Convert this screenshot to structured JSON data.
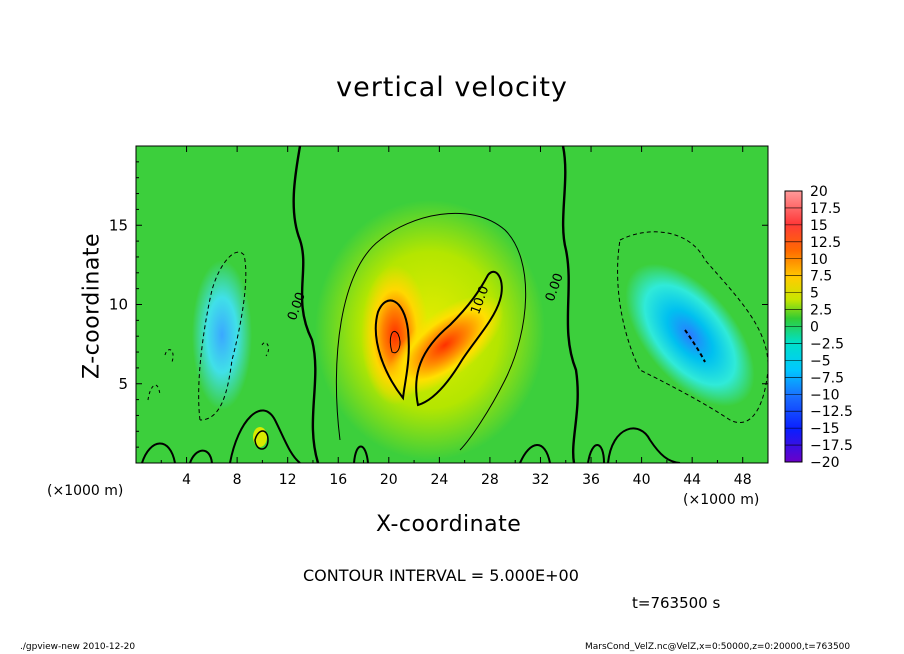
{
  "chart_data": {
    "type": "contour",
    "title": "vertical velocity",
    "xlabel": "X-coordinate",
    "ylabel": "Z-coordinate",
    "x_unit_note": "(×1000 m)",
    "xlim": [
      0,
      50
    ],
    "ylim": [
      0,
      20
    ],
    "x_ticks": [
      "4",
      "8",
      "12",
      "16",
      "20",
      "24",
      "28",
      "32",
      "36",
      "40",
      "44",
      "48"
    ],
    "y_ticks": [
      "5",
      "10",
      "15"
    ],
    "colorbar_ticks": [
      "20",
      "17.5",
      "15",
      "12.5",
      "10",
      "7.5",
      "5",
      "2.5",
      "0",
      "-2.5",
      "-5",
      "-7.5",
      "-10",
      "-12.5",
      "-15",
      "-17.5",
      "-20"
    ],
    "contour_labels": [
      {
        "text": "0.00",
        "x": 13.0,
        "z": 9.8
      },
      {
        "text": "10.0",
        "x": 27.5,
        "z": 10.2
      },
      {
        "text": "0.00",
        "x": 33.4,
        "z": 11.0
      }
    ],
    "features": [
      {
        "kind": "updraft",
        "x": 20.5,
        "z": 8.0,
        "w": 13
      },
      {
        "kind": "updraft",
        "x": 25.0,
        "z": 6.5,
        "w": 14
      },
      {
        "kind": "downdraft",
        "x": 44.0,
        "z": 7.5,
        "w": -10
      },
      {
        "kind": "downdraft",
        "x": 7.0,
        "z": 8.5,
        "w": -6
      }
    ],
    "colors": {
      "high": "#ff3a00",
      "mid_high": "#ffd400",
      "zero": "#33cc33",
      "neg": "#00d8e8",
      "low": "#1a4cff"
    }
  },
  "contour_interval_text": "CONTOUR INTERVAL = 5.000E+00",
  "time_text": "t=763500 s",
  "footer_left": "./gpview-new  2010-12-20",
  "footer_right": "MarsCond_VelZ.nc@VelZ,x=0:50000,z=0:20000,t=763500"
}
